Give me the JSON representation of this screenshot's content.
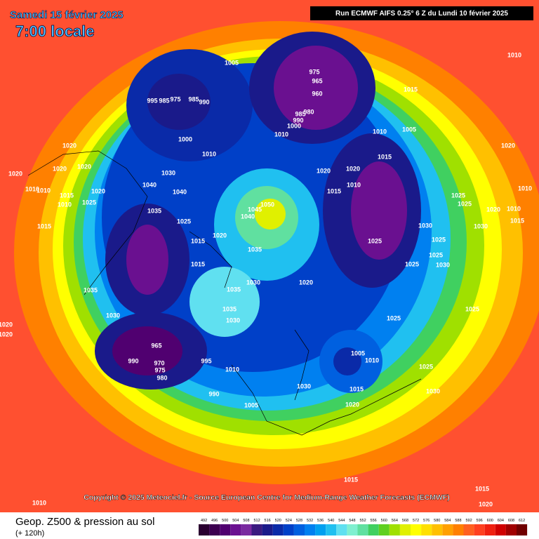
{
  "header": {
    "date": "Samedi 15 février 2025",
    "time": "7:00 locale",
    "run": "Run ECMWF AIFS 0.25° 6 Z du Lundi 10 février 2025"
  },
  "copyright": "Copyright © 2025 Meteociel.fr - Source European Centre for Medium-Range Weather Forecasts (ECMWF)",
  "legend": {
    "title": "Geop. Z500 & pression au sol",
    "subtitle": "(+ 120h)",
    "levels": [
      492,
      496,
      500,
      504,
      508,
      512,
      516,
      520,
      524,
      528,
      532,
      536,
      540,
      544,
      548,
      552,
      556,
      560,
      564,
      568,
      572,
      576,
      580,
      584,
      588,
      592,
      596,
      600,
      604,
      608,
      612
    ],
    "colors": [
      "#2a0030",
      "#3c0050",
      "#500070",
      "#6a1090",
      "#7a2aa0",
      "#3a1a80",
      "#1a1a8a",
      "#0a2aa8",
      "#0040c8",
      "#0060e0",
      "#0080f0",
      "#00a0f0",
      "#20c0f0",
      "#60e0f0",
      "#80f0d0",
      "#60e0a0",
      "#40d060",
      "#60d020",
      "#a0e000",
      "#e0f000",
      "#ffff00",
      "#ffe000",
      "#ffc000",
      "#ffa000",
      "#ff8000",
      "#ff6020",
      "#ff4020",
      "#f02010",
      "#d00000",
      "#a00000",
      "#700000"
    ]
  },
  "isobar_labels": [
    "1005",
    "975",
    "965",
    "960",
    "995",
    "985",
    "975",
    "985",
    "990",
    "980",
    "985",
    "990",
    "1000",
    "1010",
    "1010",
    "1005",
    "1015",
    "1010",
    "1020",
    "1000",
    "1010",
    "1020",
    "1020",
    "1020",
    "1020",
    "1010",
    "1010",
    "1015",
    "1010",
    "1020",
    "1025",
    "1030",
    "1040",
    "1040",
    "1035",
    "1025",
    "1020",
    "1015",
    "1015",
    "1015",
    "1035",
    "1030",
    "1045",
    "1050",
    "1040",
    "1035",
    "1030",
    "1035",
    "1035",
    "1030",
    "1020",
    "1020",
    "1015",
    "1010",
    "1015",
    "1025",
    "1025",
    "1020",
    "1030",
    "1025",
    "1025",
    "1025",
    "1030",
    "1020",
    "1025",
    "1030",
    "1025",
    "1025",
    "1005",
    "1010",
    "1015",
    "1020",
    "1025",
    "1030",
    "1030",
    "965",
    "990",
    "970",
    "975",
    "980",
    "995",
    "1010",
    "990",
    "1005",
    "1015",
    "1015",
    "1020",
    "1010",
    "1020",
    "1020",
    "1010",
    "1015",
    "1010"
  ]
}
